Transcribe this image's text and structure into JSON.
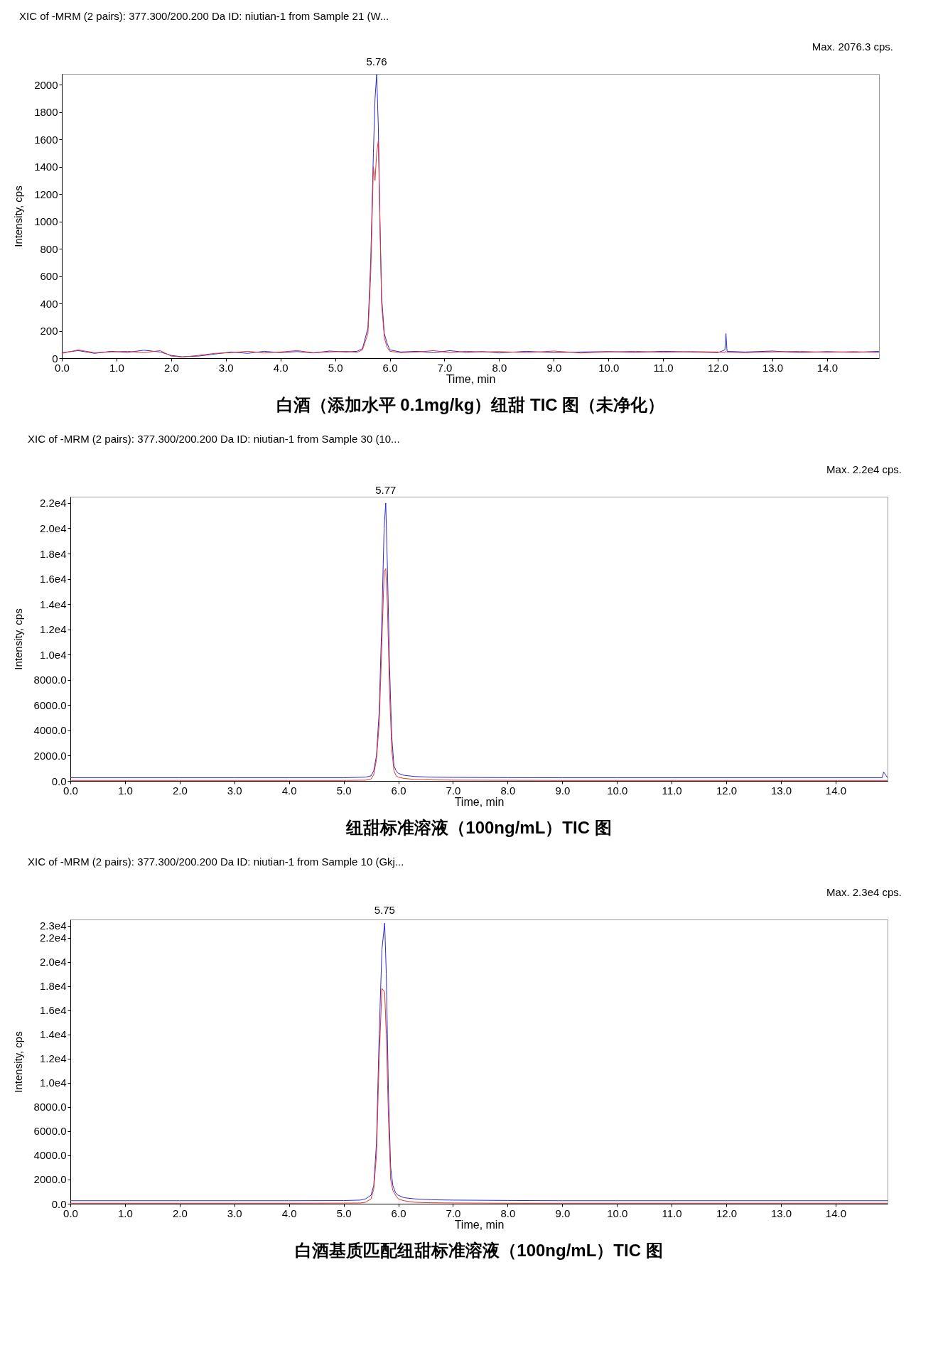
{
  "chart_data": [
    {
      "type": "line",
      "title": "XIC of -MRM (2 pairs): 377.300/200.200 Da ID: niutian-1 from Sample 21 (W...",
      "xlabel": "Time, min",
      "ylabel": "Intensity, cps",
      "grid": false,
      "marker": "none",
      "line_style": "solid",
      "annotations": [
        "Max. 2076.3 cps.",
        "白酒（添加水平 0.1mg/kg）纽甜 TIC 图（未净化）",
        {
          "text": "5.76",
          "x": 5.76,
          "y": 2076
        }
      ],
      "xlim": [
        0,
        14.95
      ],
      "xticks": [
        {
          "value": 0,
          "label": "0.0"
        },
        {
          "value": 1,
          "label": "1.0"
        },
        {
          "value": 2,
          "label": "2.0"
        },
        {
          "value": 3,
          "label": "3.0"
        },
        {
          "value": 4,
          "label": "4.0"
        },
        {
          "value": 5,
          "label": "5.0"
        },
        {
          "value": 6,
          "label": "6.0"
        },
        {
          "value": 7,
          "label": "7.0"
        },
        {
          "value": 8,
          "label": "8.0"
        },
        {
          "value": 9,
          "label": "9.0"
        },
        {
          "value": 10,
          "label": "10.0"
        },
        {
          "value": 11,
          "label": "11.0"
        },
        {
          "value": 12,
          "label": "12.0"
        },
        {
          "value": 13,
          "label": "13.0"
        },
        {
          "value": 14,
          "label": "14.0"
        }
      ],
      "ylim": [
        0,
        2080
      ],
      "yticks": [
        0,
        200,
        400,
        600,
        800,
        1000,
        1200,
        1400,
        1600,
        1800,
        2000
      ],
      "series": [
        {
          "color": "#2b2bd6",
          "x": [
            0,
            0.3,
            0.6,
            0.9,
            1.2,
            1.5,
            1.8,
            2.0,
            2.2,
            2.5,
            2.8,
            3.1,
            3.4,
            3.7,
            4.0,
            4.3,
            4.6,
            4.9,
            5.2,
            5.4,
            5.5,
            5.6,
            5.65,
            5.7,
            5.73,
            5.76,
            5.79,
            5.82,
            5.85,
            5.9,
            5.95,
            6.0,
            6.2,
            6.5,
            6.8,
            7.1,
            7.4,
            7.7,
            8.0,
            8.5,
            9.0,
            9.5,
            10.0,
            10.5,
            11.0,
            11.5,
            12.0,
            12.13,
            12.15,
            12.17,
            12.5,
            13.0,
            13.5,
            14.0,
            14.5,
            14.95
          ],
          "values": [
            40,
            55,
            35,
            50,
            42,
            58,
            45,
            20,
            10,
            15,
            30,
            45,
            35,
            50,
            40,
            48,
            38,
            52,
            45,
            50,
            70,
            220,
            700,
            1500,
            1900,
            2076,
            1700,
            1000,
            450,
            180,
            110,
            60,
            45,
            50,
            40,
            55,
            42,
            48,
            38,
            50,
            40,
            45,
            48,
            42,
            50,
            45,
            40,
            60,
            180,
            50,
            45,
            52,
            40,
            48,
            42,
            50
          ]
        },
        {
          "color": "#e8332a",
          "x": [
            0,
            0.3,
            0.6,
            0.9,
            1.2,
            1.5,
            1.8,
            2.0,
            2.2,
            2.5,
            2.8,
            3.1,
            3.4,
            3.7,
            4.0,
            4.3,
            4.6,
            4.9,
            5.2,
            5.4,
            5.5,
            5.6,
            5.65,
            5.7,
            5.73,
            5.76,
            5.79,
            5.82,
            5.85,
            5.9,
            5.95,
            6.0,
            6.2,
            6.5,
            6.8,
            7.1,
            7.4,
            7.7,
            8.0,
            8.5,
            9.0,
            9.5,
            10.0,
            10.5,
            11.0,
            11.5,
            12.0,
            12.13,
            12.15,
            12.17,
            12.5,
            13.0,
            13.5,
            14.0,
            14.5,
            14.95
          ],
          "values": [
            35,
            60,
            40,
            45,
            50,
            40,
            55,
            15,
            8,
            20,
            35,
            40,
            50,
            38,
            45,
            55,
            40,
            45,
            50,
            42,
            60,
            180,
            600,
            1400,
            1300,
            1500,
            1590,
            1000,
            400,
            150,
            80,
            50,
            40,
            45,
            55,
            40,
            50,
            45,
            48,
            40,
            52,
            38,
            45,
            50,
            42,
            48,
            45,
            40,
            50,
            42,
            40,
            45,
            50,
            42,
            48,
            40
          ]
        }
      ]
    },
    {
      "type": "line",
      "title": "XIC of -MRM (2 pairs): 377.300/200.200 Da ID: niutian-1 from Sample 30 (10...",
      "xlabel": "Time, min",
      "ylabel": "Intensity, cps",
      "grid": false,
      "marker": "none",
      "line_style": "solid",
      "annotations": [
        "Max. 2.2e4 cps.",
        "纽甜标准溶液（100ng/mL）TIC 图",
        {
          "text": "5.77",
          "x": 5.77,
          "y": 22000
        }
      ],
      "xlim": [
        0,
        14.95
      ],
      "xticks": [
        {
          "value": 0,
          "label": "0.0"
        },
        {
          "value": 1,
          "label": "1.0"
        },
        {
          "value": 2,
          "label": "2.0"
        },
        {
          "value": 3,
          "label": "3.0"
        },
        {
          "value": 4,
          "label": "4.0"
        },
        {
          "value": 5,
          "label": "5.0"
        },
        {
          "value": 6,
          "label": "6.0"
        },
        {
          "value": 7,
          "label": "7.0"
        },
        {
          "value": 8,
          "label": "8.0"
        },
        {
          "value": 9,
          "label": "9.0"
        },
        {
          "value": 10,
          "label": "10.0"
        },
        {
          "value": 11,
          "label": "11.0"
        },
        {
          "value": 12,
          "label": "12.0"
        },
        {
          "value": 13,
          "label": "13.0"
        },
        {
          "value": 14,
          "label": "14.0"
        }
      ],
      "ylim": [
        0,
        22500
      ],
      "yticks": [
        {
          "value": 0,
          "label": "0.0"
        },
        {
          "value": 2000,
          "label": "2000.0"
        },
        {
          "value": 4000,
          "label": "4000.0"
        },
        {
          "value": 6000,
          "label": "6000.0"
        },
        {
          "value": 8000,
          "label": "8000.0"
        },
        {
          "value": 10000,
          "label": "1.0e4"
        },
        {
          "value": 12000,
          "label": "1.2e4"
        },
        {
          "value": 14000,
          "label": "1.4e4"
        },
        {
          "value": 16000,
          "label": "1.6e4"
        },
        {
          "value": 18000,
          "label": "1.8e4"
        },
        {
          "value": 20000,
          "label": "2.0e4"
        },
        {
          "value": 22000,
          "label": "2.2e4"
        }
      ],
      "series": [
        {
          "color": "#2b2bd6",
          "x": [
            0,
            1,
            2,
            3,
            4,
            5,
            5.4,
            5.5,
            5.55,
            5.6,
            5.65,
            5.7,
            5.74,
            5.77,
            5.8,
            5.84,
            5.88,
            5.92,
            5.96,
            6.0,
            6.1,
            6.3,
            6.6,
            7,
            8,
            9,
            10,
            11,
            12,
            13,
            14,
            14.85,
            14.88,
            14.95
          ],
          "values": [
            250,
            250,
            250,
            250,
            250,
            250,
            300,
            400,
            800,
            2000,
            5500,
            13000,
            20000,
            22000,
            17000,
            9000,
            3500,
            1200,
            800,
            600,
            450,
            350,
            300,
            280,
            260,
            250,
            250,
            250,
            250,
            250,
            250,
            250,
            700,
            250
          ]
        },
        {
          "color": "#e8332a",
          "x": [
            0,
            1,
            2,
            3,
            4,
            5,
            5.4,
            5.5,
            5.55,
            5.6,
            5.65,
            5.7,
            5.74,
            5.77,
            5.8,
            5.84,
            5.88,
            5.92,
            5.96,
            6.0,
            6.1,
            6.3,
            6.6,
            7,
            8,
            9,
            10,
            11,
            12,
            13,
            14,
            14.85,
            14.88,
            14.95
          ],
          "values": [
            40,
            40,
            40,
            40,
            40,
            40,
            60,
            150,
            500,
            1700,
            4500,
            11000,
            16500,
            16800,
            14000,
            7000,
            2500,
            800,
            400,
            300,
            200,
            120,
            80,
            60,
            50,
            40,
            40,
            40,
            40,
            40,
            40,
            40,
            40,
            40
          ]
        }
      ]
    },
    {
      "type": "line",
      "title": "XIC of -MRM (2 pairs): 377.300/200.200 Da ID: niutian-1 from Sample 10 (Gkj...",
      "xlabel": "Time, min",
      "ylabel": "Intensity, cps",
      "grid": false,
      "marker": "none",
      "line_style": "solid",
      "annotations": [
        "Max. 2.3e4 cps.",
        "白酒基质匹配纽甜标准溶液（100ng/mL）TIC 图",
        {
          "text": "5.75",
          "x": 5.75,
          "y": 23200
        }
      ],
      "xlim": [
        0,
        14.95
      ],
      "xticks": [
        {
          "value": 0,
          "label": "0.0"
        },
        {
          "value": 1,
          "label": "1.0"
        },
        {
          "value": 2,
          "label": "2.0"
        },
        {
          "value": 3,
          "label": "3.0"
        },
        {
          "value": 4,
          "label": "4.0"
        },
        {
          "value": 5,
          "label": "5.0"
        },
        {
          "value": 6,
          "label": "6.0"
        },
        {
          "value": 7,
          "label": "7.0"
        },
        {
          "value": 8,
          "label": "8.0"
        },
        {
          "value": 9,
          "label": "9.0"
        },
        {
          "value": 10,
          "label": "10.0"
        },
        {
          "value": 11,
          "label": "11.0"
        },
        {
          "value": 12,
          "label": "12.0"
        },
        {
          "value": 13,
          "label": "13.0"
        },
        {
          "value": 14,
          "label": "14.0"
        }
      ],
      "ylim": [
        0,
        23500
      ],
      "yticks": [
        {
          "value": 0,
          "label": "0.0"
        },
        {
          "value": 2000,
          "label": "2000.0"
        },
        {
          "value": 4000,
          "label": "4000.0"
        },
        {
          "value": 6000,
          "label": "6000.0"
        },
        {
          "value": 8000,
          "label": "8000.0"
        },
        {
          "value": 10000,
          "label": "1.0e4"
        },
        {
          "value": 12000,
          "label": "1.2e4"
        },
        {
          "value": 14000,
          "label": "1.4e4"
        },
        {
          "value": 16000,
          "label": "1.6e4"
        },
        {
          "value": 18000,
          "label": "1.8e4"
        },
        {
          "value": 20000,
          "label": "2.0e4"
        },
        {
          "value": 22000,
          "label": "2.2e4"
        },
        {
          "value": 23000,
          "label": "2.3e4"
        }
      ],
      "series": [
        {
          "color": "#2b2bd6",
          "x": [
            0,
            1,
            2,
            3,
            4,
            5,
            5.3,
            5.4,
            5.5,
            5.55,
            5.6,
            5.65,
            5.7,
            5.75,
            5.78,
            5.82,
            5.86,
            5.9,
            5.95,
            6.0,
            6.1,
            6.3,
            6.6,
            7,
            8,
            9,
            10,
            11,
            12,
            13,
            14,
            14.95
          ],
          "values": [
            250,
            250,
            250,
            250,
            250,
            260,
            300,
            400,
            700,
            1500,
            5000,
            14000,
            21000,
            23200,
            19000,
            9000,
            3000,
            1500,
            900,
            700,
            500,
            400,
            330,
            300,
            270,
            250,
            250,
            250,
            250,
            250,
            250,
            250
          ]
        },
        {
          "color": "#e8332a",
          "x": [
            0,
            1,
            2,
            3,
            4,
            5,
            5.3,
            5.4,
            5.5,
            5.55,
            5.6,
            5.65,
            5.7,
            5.75,
            5.78,
            5.82,
            5.86,
            5.9,
            5.95,
            6.0,
            6.1,
            6.3,
            6.6,
            7,
            8,
            9,
            10,
            11,
            12,
            13,
            14,
            14.95
          ],
          "values": [
            40,
            40,
            40,
            40,
            40,
            50,
            60,
            120,
            400,
            1200,
            4000,
            12000,
            17800,
            17500,
            14000,
            7000,
            2000,
            1100,
            700,
            400,
            250,
            120,
            80,
            60,
            40,
            40,
            40,
            40,
            40,
            40,
            40,
            40
          ]
        }
      ]
    }
  ]
}
